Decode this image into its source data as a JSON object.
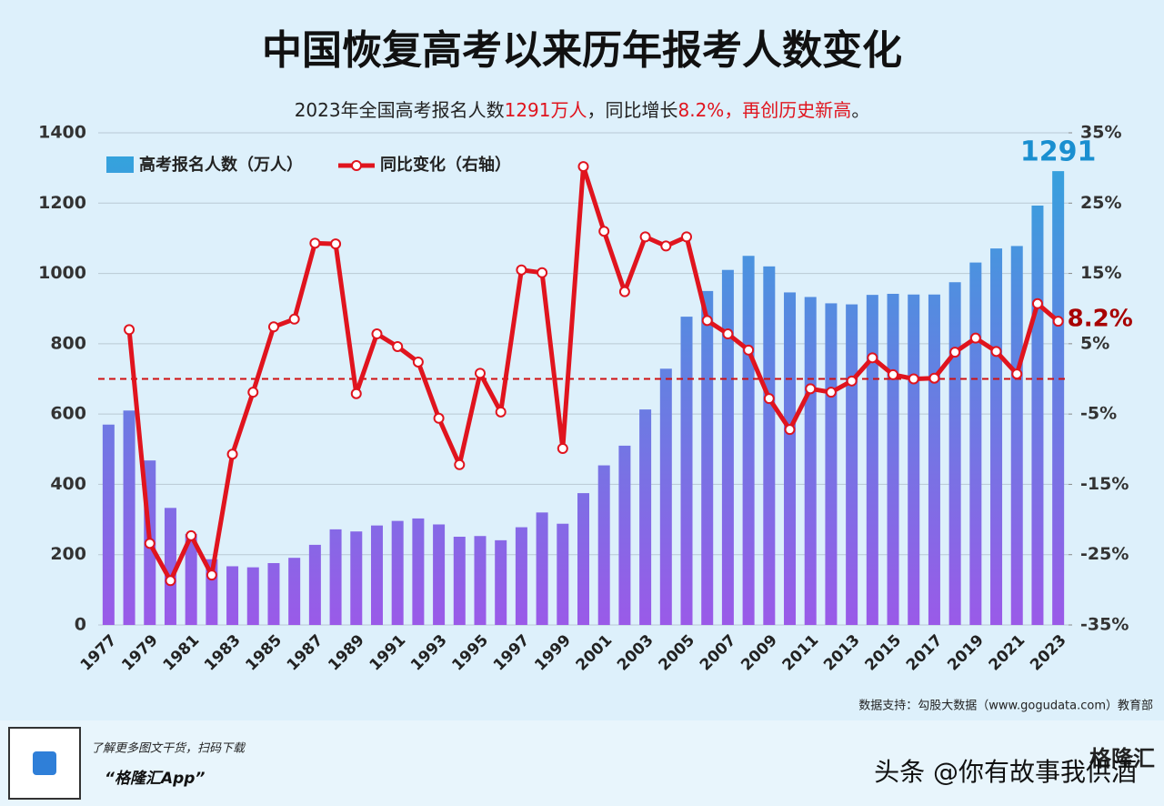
{
  "chart_data": {
    "type": "bar-line",
    "title": "中国恢复高考以来历年报考人数变化",
    "subtitle_parts": [
      {
        "text": "2023年全国高考报名人数",
        "color": "#222222"
      },
      {
        "text": "1291万人",
        "color": "#e0141e"
      },
      {
        "text": "，同比增长",
        "color": "#222222"
      },
      {
        "text": "8.2%",
        "color": "#e0141e"
      },
      {
        "text": "，再创历史新高",
        "color": "#e0141e"
      },
      {
        "text": "。",
        "color": "#222222"
      }
    ],
    "categories": [
      "1977",
      null,
      "1979",
      null,
      "1981",
      null,
      "1983",
      null,
      "1985",
      null,
      "1987",
      null,
      "1989",
      null,
      "1991",
      null,
      "1993",
      null,
      "1995",
      null,
      "1997",
      null,
      "1999",
      null,
      "2001",
      null,
      "2003",
      null,
      "2005",
      null,
      "2007",
      null,
      "2009",
      null,
      "2011",
      null,
      "2013",
      null,
      "2015",
      null,
      "2017",
      null,
      "2019",
      null,
      "2021",
      null,
      "2023"
    ],
    "series": [
      {
        "name": "高考报名人数（万人）",
        "color": "#2fa6dc",
        "color_bottom": "#9a5ae8",
        "values": [
          570,
          610,
          468,
          333,
          259,
          187,
          167,
          164,
          176,
          191,
          228,
          272,
          266,
          283,
          296,
          303,
          286,
          251,
          253,
          241,
          278,
          320,
          288,
          375,
          454,
          510,
          613,
          729,
          877,
          950,
          1010,
          1050,
          1020,
          946,
          933,
          915,
          912,
          939,
          942,
          940,
          940,
          975,
          1031,
          1071,
          1078,
          1193,
          1291
        ],
        "value_labels": [
          null,
          null,
          null,
          null,
          null,
          null,
          null,
          null,
          null,
          null,
          null,
          null,
          null,
          null,
          null,
          null,
          null,
          null,
          null,
          null,
          null,
          null,
          null,
          null,
          null,
          null,
          null,
          null,
          null,
          null,
          null,
          null,
          null,
          null,
          null,
          null,
          null,
          null,
          null,
          null,
          null,
          null,
          null,
          null,
          null,
          null,
          "1291"
        ]
      },
      {
        "name": "同比变化（右轴）",
        "color": "#e0141e",
        "axis": "y2",
        "values": [
          null,
          7.0,
          -23.4,
          -28.7,
          -22.3,
          -27.9,
          -10.7,
          -1.9,
          7.4,
          8.5,
          19.3,
          19.2,
          -2.1,
          6.4,
          4.6,
          2.4,
          -5.6,
          -12.2,
          0.8,
          -4.7,
          15.5,
          15.1,
          -9.9,
          30.2,
          21.0,
          12.4,
          20.2,
          18.9,
          20.2,
          8.3,
          6.4,
          4.1,
          -2.8,
          -7.2,
          -1.4,
          -1.9,
          -0.3,
          3.0,
          0.6,
          0.0,
          0.1,
          3.8,
          5.8,
          3.9,
          0.7,
          10.7,
          8.2
        ],
        "value_labels": [
          null,
          null,
          null,
          null,
          null,
          null,
          null,
          null,
          null,
          null,
          null,
          null,
          null,
          null,
          null,
          null,
          null,
          null,
          null,
          null,
          null,
          null,
          null,
          null,
          null,
          null,
          null,
          null,
          null,
          null,
          null,
          null,
          null,
          null,
          null,
          null,
          null,
          null,
          null,
          null,
          null,
          null,
          null,
          null,
          null,
          null,
          "8.2%"
        ]
      }
    ],
    "ylim": [
      0,
      1400
    ],
    "yticks": [
      0,
      200,
      400,
      600,
      800,
      1000,
      1200,
      1400
    ],
    "y2lim": [
      -35,
      35
    ],
    "y2ticks": [
      {
        "value": -35,
        "label": "-35%"
      },
      {
        "value": -25,
        "label": "-25%"
      },
      {
        "value": -15,
        "label": "-15%"
      },
      {
        "value": -5,
        "label": "-5%"
      },
      {
        "value": 5,
        "label": "5%"
      },
      {
        "value": 15,
        "label": "15%"
      },
      {
        "value": 25,
        "label": "25%"
      },
      {
        "value": 35,
        "label": "35%"
      }
    ],
    "y2_reference_line": 0,
    "grid": true,
    "legend": "top-left",
    "source": "数据支持：勾股大数据（www.gogudata.com）教育部"
  },
  "footer": {
    "tagline": "了解更多图文干货，扫码下载",
    "app": "“格隆汇App”",
    "brand": "格隆汇",
    "watermark": "头条 @你有故事我供酒"
  }
}
